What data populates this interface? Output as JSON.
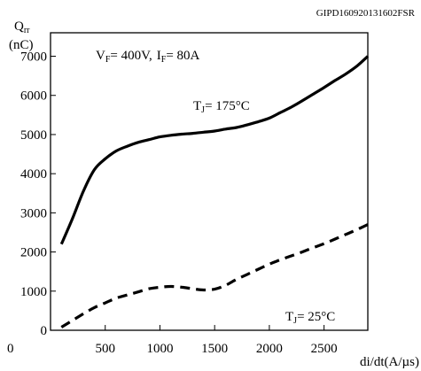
{
  "header": {
    "code": "GIPD160920131602FSR"
  },
  "chart_data": {
    "type": "line",
    "ylabel": {
      "main": "Q",
      "sub": "rr",
      "unit": "(nC)"
    },
    "xlabel": "di/dt(A/µs)",
    "xlim": [
      0,
      2900
    ],
    "ylim": [
      0,
      7600
    ],
    "x_ticks": [
      0,
      500,
      1000,
      1500,
      2000,
      2500
    ],
    "y_ticks": [
      0,
      1000,
      2000,
      3000,
      4000,
      5000,
      6000,
      7000
    ],
    "grid": false,
    "conditions": {
      "v_sym": "V",
      "v_sub": "F",
      "v_val": "= 400V,",
      "i_sym": "I",
      "i_sub": "F",
      "i_val": "= 80A"
    },
    "series": [
      {
        "label": {
          "sym": "T",
          "sub": "J",
          "val": "= 175°C"
        },
        "style": "solid",
        "x": [
          100,
          200,
          300,
          400,
          500,
          600,
          700,
          800,
          900,
          1000,
          1100,
          1200,
          1300,
          1400,
          1500,
          1600,
          1700,
          1800,
          1900,
          2000,
          2100,
          2200,
          2300,
          2400,
          2500,
          2600,
          2700,
          2800,
          2900
        ],
        "y": [
          2200,
          2850,
          3550,
          4100,
          4380,
          4580,
          4700,
          4800,
          4870,
          4940,
          4980,
          5010,
          5030,
          5060,
          5090,
          5140,
          5180,
          5250,
          5330,
          5420,
          5560,
          5700,
          5860,
          6030,
          6200,
          6380,
          6550,
          6750,
          7000
        ]
      },
      {
        "label": {
          "sym": "T",
          "sub": "J",
          "val": "= 25°C"
        },
        "style": "dashed",
        "x": [
          100,
          200,
          300,
          400,
          500,
          600,
          700,
          800,
          900,
          1000,
          1100,
          1200,
          1300,
          1400,
          1500,
          1600,
          1700,
          1800,
          1900,
          2000,
          2100,
          2200,
          2300,
          2400,
          2500,
          2600,
          2700,
          2800,
          2900
        ],
        "y": [
          80,
          250,
          420,
          580,
          700,
          820,
          900,
          980,
          1060,
          1100,
          1120,
          1100,
          1060,
          1030,
          1050,
          1150,
          1300,
          1430,
          1560,
          1690,
          1800,
          1900,
          2000,
          2110,
          2210,
          2330,
          2450,
          2570,
          2700
        ]
      }
    ]
  }
}
